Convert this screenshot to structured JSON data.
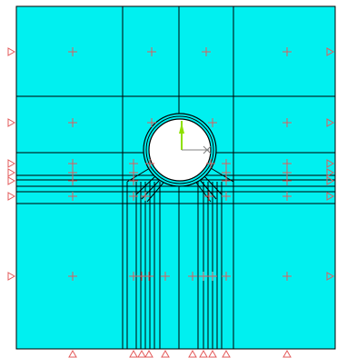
{
  "colors": {
    "background": "#ffffff",
    "fill": "#00f0f0",
    "mesh_line": "#000000",
    "node_marker": "#e35b5b",
    "constraint_marker": "#e35b5b",
    "opening_fill": "#ffffff",
    "axis_green": "#8ee000",
    "axis_gray": "#808080"
  },
  "icons": {
    "node": "plus-marker",
    "boundary": "triangle-support",
    "axis": "coordinate-triad"
  },
  "mesh": {
    "type": "tunnel-cross-section",
    "opening": "circular",
    "labels": []
  }
}
